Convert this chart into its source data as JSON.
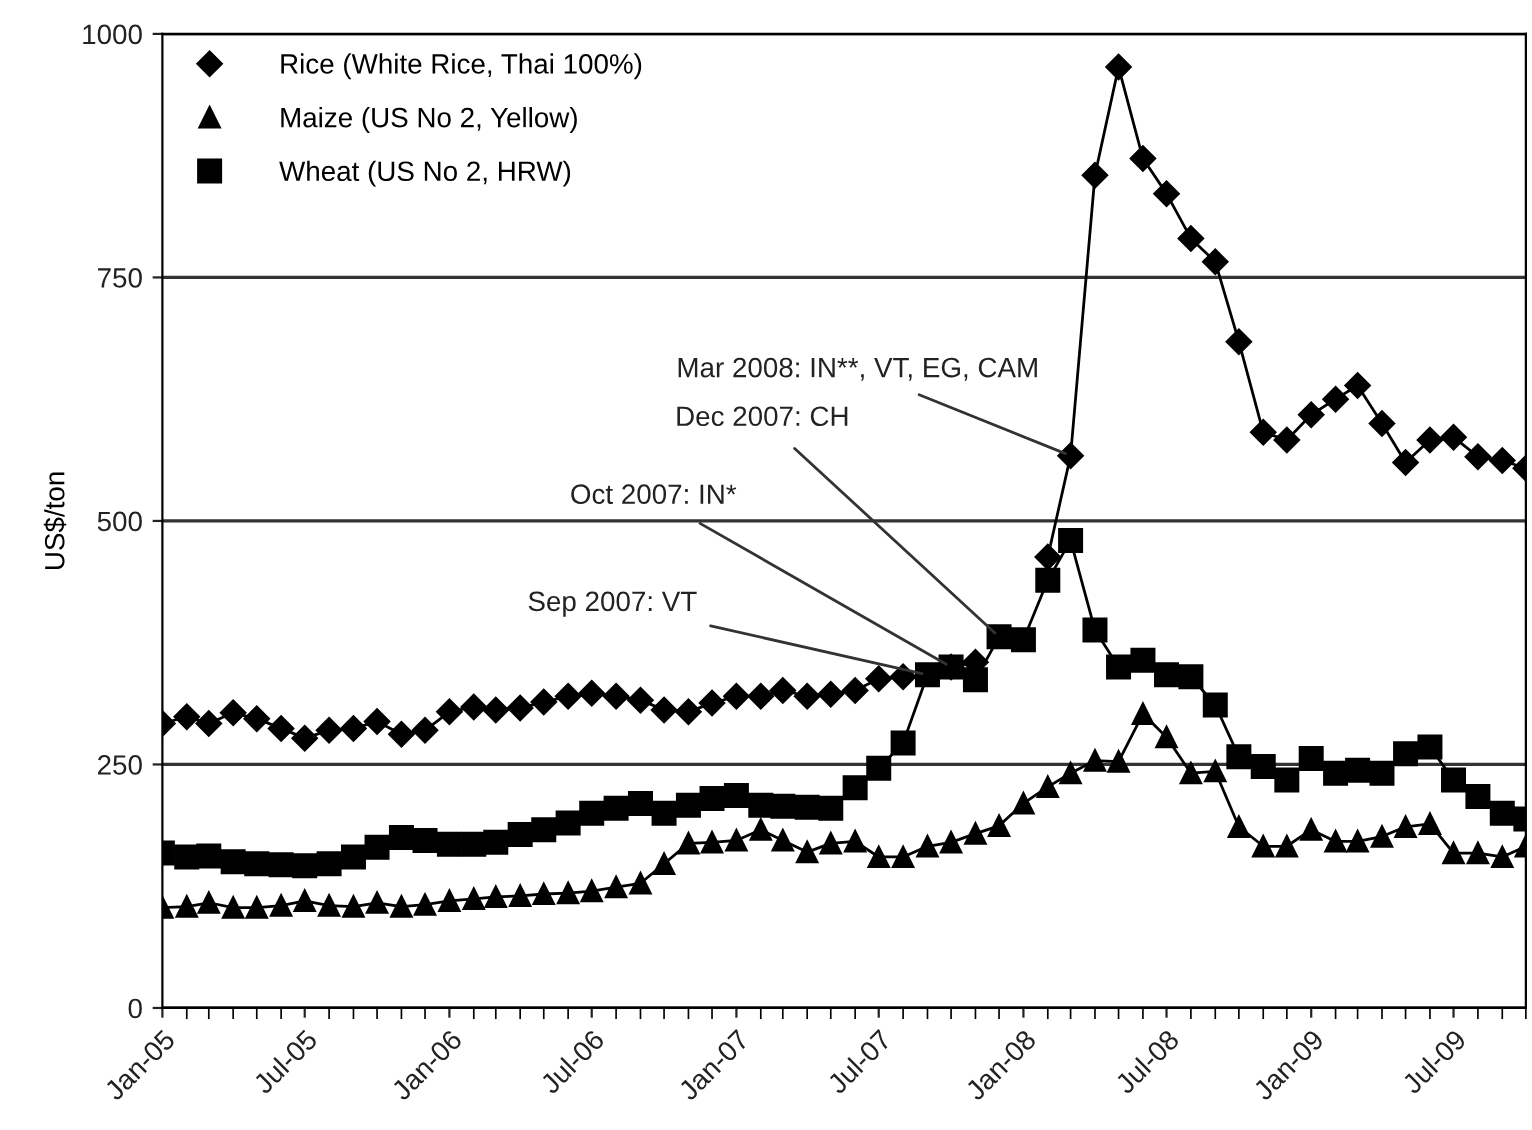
{
  "chart_data": {
    "type": "line",
    "ylabel": "US$/ton",
    "x": [
      "2005-01",
      "2005-02",
      "2005-03",
      "2005-04",
      "2005-05",
      "2005-06",
      "2005-07",
      "2005-08",
      "2005-09",
      "2005-10",
      "2005-11",
      "2005-12",
      "2006-01",
      "2006-02",
      "2006-03",
      "2006-04",
      "2006-05",
      "2006-06",
      "2006-07",
      "2006-08",
      "2006-09",
      "2006-10",
      "2006-11",
      "2006-12",
      "2007-01",
      "2007-02",
      "2007-03",
      "2007-04",
      "2007-05",
      "2007-06",
      "2007-07",
      "2007-08",
      "2007-09",
      "2007-10",
      "2007-11",
      "2007-12",
      "2008-01",
      "2008-02",
      "2008-03",
      "2008-04",
      "2008-05",
      "2008-06",
      "2008-07",
      "2008-08",
      "2008-09",
      "2008-10",
      "2008-11",
      "2008-12",
      "2009-01",
      "2009-02",
      "2009-03",
      "2009-04",
      "2009-05",
      "2009-06",
      "2009-07",
      "2009-08",
      "2009-09",
      "2009-10"
    ],
    "series": [
      {
        "name": "Rice (White Rice, Thai 100%)",
        "color": "#000000",
        "marker": "diamond",
        "values": [
          292,
          299,
          292,
          303,
          297,
          287,
          277,
          285,
          287,
          294,
          281,
          285,
          304,
          309,
          306,
          308,
          314,
          320,
          323,
          320,
          316,
          306,
          304,
          313,
          320,
          320,
          326,
          320,
          322,
          326,
          338,
          340,
          null,
          350,
          355,
          null,
          null,
          463,
          567,
          855,
          966,
          872,
          836,
          790,
          766,
          684,
          591,
          583,
          609,
          625,
          639,
          600,
          560,
          583,
          586,
          566,
          562,
          554
        ]
      },
      {
        "name": "Maize (US No 2, Yellow)",
        "color": "#000000",
        "marker": "triangle",
        "values": [
          103,
          104,
          108,
          103,
          103,
          105,
          110,
          105,
          104,
          108,
          104,
          106,
          110,
          112,
          114,
          115,
          117,
          118,
          120,
          124,
          128,
          148,
          169,
          170,
          172,
          183,
          172,
          160,
          169,
          171,
          155,
          155,
          166,
          170,
          179,
          187,
          210,
          227,
          241,
          254,
          253,
          302,
          278,
          241,
          243,
          186,
          166,
          166,
          183,
          171,
          171,
          176,
          186,
          189,
          159,
          159,
          155,
          166
        ]
      },
      {
        "name": "Wheat (US No 2, HRW)",
        "color": "#000000",
        "marker": "square",
        "values": [
          159,
          155,
          156,
          150,
          148,
          147,
          146,
          148,
          155,
          165,
          175,
          172,
          168,
          168,
          170,
          178,
          183,
          190,
          200,
          205,
          210,
          200,
          208,
          215,
          218,
          208,
          207,
          206,
          205,
          226,
          246,
          272,
          342,
          350,
          337,
          381,
          378,
          439,
          480,
          388,
          350,
          357,
          342,
          340,
          311,
          258,
          248,
          234,
          256,
          241,
          244,
          241,
          261,
          268,
          234,
          217,
          200,
          194
        ]
      }
    ],
    "xlim": [
      "2005-01",
      "2009-10"
    ],
    "xticks": [
      {
        "value": "2005-01",
        "label": "Jan-05"
      },
      {
        "value": "2005-07",
        "label": "Jul-05"
      },
      {
        "value": "2006-01",
        "label": "Jan-06"
      },
      {
        "value": "2006-07",
        "label": "Jul-06"
      },
      {
        "value": "2007-01",
        "label": "Jan-07"
      },
      {
        "value": "2007-07",
        "label": "Jul-07"
      },
      {
        "value": "2008-01",
        "label": "Jan-08"
      },
      {
        "value": "2008-07",
        "label": "Jul-08"
      },
      {
        "value": "2009-01",
        "label": "Jan-09"
      },
      {
        "value": "2009-07",
        "label": "Jul-09"
      }
    ],
    "ylim": [
      0,
      1000
    ],
    "yticks": [
      0,
      250,
      500,
      750,
      1000
    ],
    "grid": "y",
    "legend": "top left",
    "line_style": "solid",
    "annotations": [
      {
        "text": "Mar 2008: IN**, VT, EG, CAM",
        "x": "2008-03",
        "y": 567
      },
      {
        "text": "Dec 2007: CH",
        "x": "2007-12",
        "y": 381
      },
      {
        "text": "Oct 2007: IN*",
        "x": "2007-10",
        "y": 350
      },
      {
        "text": "Sep 2007: VT",
        "x": "2007-09",
        "y": 342
      }
    ]
  }
}
